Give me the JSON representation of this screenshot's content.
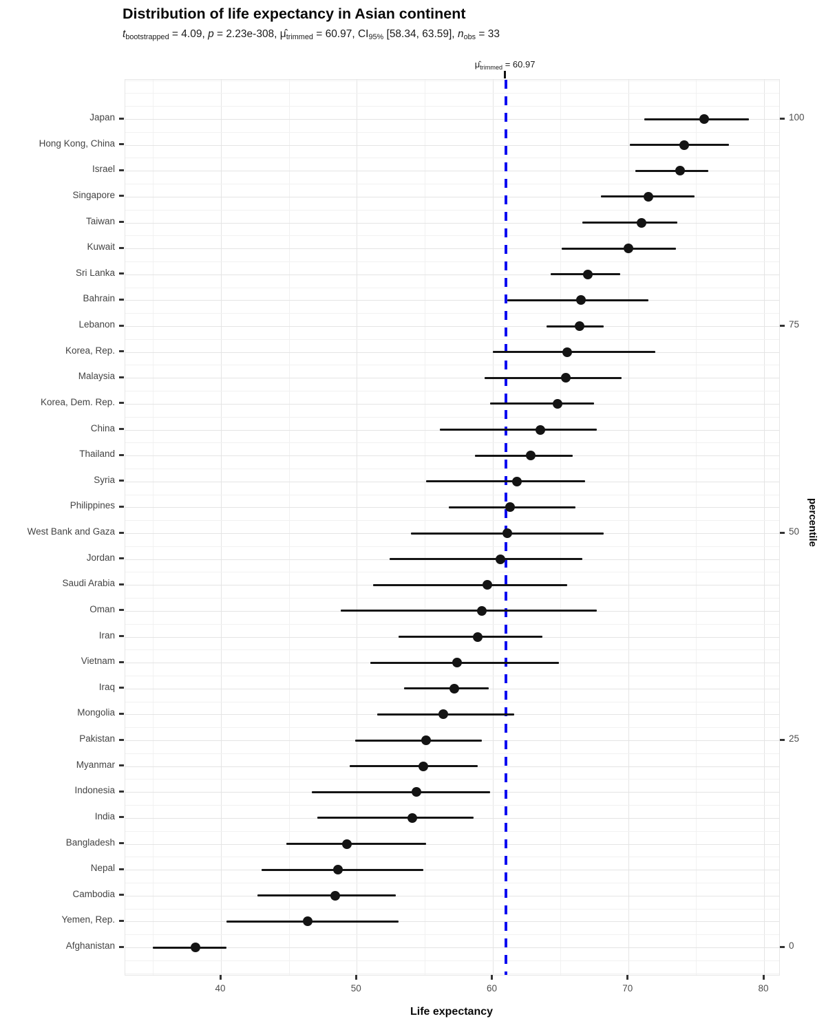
{
  "title": "Distribution of life expectancy in Asian continent",
  "subtitle_segments": [
    {
      "t": "t",
      "s": "i"
    },
    {
      "t": "bootstrapped",
      "s": "sub"
    },
    {
      "t": " = 4.09, "
    },
    {
      "t": "p",
      "s": "i"
    },
    {
      "t": " = 2.23e-308, "
    },
    {
      "t": "μ̂"
    },
    {
      "t": "trimmed",
      "s": "sub"
    },
    {
      "t": " = 60.97, CI"
    },
    {
      "t": "95%",
      "s": "sub"
    },
    {
      "t": " [58.34, 63.59], "
    },
    {
      "t": "n",
      "s": "i"
    },
    {
      "t": "obs",
      "s": "sub"
    },
    {
      "t": " = 33"
    }
  ],
  "colors": {
    "vline_blue": "#0D0DF0",
    "point_black": "#141414",
    "grid_major": "#E4E4E4",
    "grid_minor": "#F1F1F1",
    "axis_text": "#4D4D4D",
    "country_text": "#434343",
    "tick_mark": "#333333"
  },
  "chart_data": {
    "type": "scatter",
    "title": "Distribution of life expectancy in Asian continent",
    "subtitle_plain": "t bootstrapped = 4.09, p = 2.23e-308, mu-hat trimmed = 60.97, CI 95% [58.34, 63.59], n obs = 33",
    "xlabel": "Life expectancy",
    "xlim": [
      33.0,
      81.2
    ],
    "x_ticks": [
      40,
      50,
      60,
      70,
      80
    ],
    "x_tick_labels": [
      "40",
      "50",
      "60",
      "70",
      "80"
    ],
    "x_minor_ticks": [
      35,
      45,
      55,
      65,
      75
    ],
    "grid": true,
    "vline": {
      "x": 60.97,
      "style": "dashed",
      "label_segments": [
        {
          "t": "μ̂"
        },
        {
          "t": "trimmed",
          "s": "sub"
        },
        {
          "t": " = 60.97"
        }
      ]
    },
    "right_axis": {
      "title": "percentile",
      "ticks": [
        {
          "label": "100",
          "country": "Japan"
        },
        {
          "label": "75",
          "country": "Lebanon"
        },
        {
          "label": "50",
          "country": "West Bank and Gaza"
        },
        {
          "label": "25",
          "country": "Pakistan"
        },
        {
          "label": "0",
          "country": "Afghanistan"
        }
      ]
    },
    "points": [
      {
        "country": "Japan",
        "mean": 75.6,
        "ci": [
          71.2,
          78.9
        ],
        "percentile": 100
      },
      {
        "country": "Hong Kong, China",
        "mean": 74.1,
        "ci": [
          70.1,
          77.4
        ],
        "percentile": 96.9
      },
      {
        "country": "Israel",
        "mean": 73.8,
        "ci": [
          70.5,
          75.9
        ],
        "percentile": 93.8
      },
      {
        "country": "Singapore",
        "mean": 71.5,
        "ci": [
          68.0,
          74.9
        ],
        "percentile": 90.6
      },
      {
        "country": "Taiwan",
        "mean": 71.0,
        "ci": [
          66.6,
          73.6
        ],
        "percentile": 87.5
      },
      {
        "country": "Kuwait",
        "mean": 70.0,
        "ci": [
          65.1,
          73.5
        ],
        "percentile": 84.4
      },
      {
        "country": "Sri Lanka",
        "mean": 67.0,
        "ci": [
          64.3,
          69.4
        ],
        "percentile": 81.3
      },
      {
        "country": "Bahrain",
        "mean": 66.5,
        "ci": [
          61.1,
          71.5
        ],
        "percentile": 78.1
      },
      {
        "country": "Lebanon",
        "mean": 66.4,
        "ci": [
          64.0,
          68.2
        ],
        "percentile": 75
      },
      {
        "country": "Korea, Rep.",
        "mean": 65.5,
        "ci": [
          60.0,
          72.0
        ],
        "percentile": 71.9
      },
      {
        "country": "Malaysia",
        "mean": 65.4,
        "ci": [
          59.4,
          69.5
        ],
        "percentile": 68.8
      },
      {
        "country": "Korea, Dem. Rep.",
        "mean": 64.8,
        "ci": [
          59.8,
          67.5
        ],
        "percentile": 65.6
      },
      {
        "country": "China",
        "mean": 63.5,
        "ci": [
          56.1,
          67.7
        ],
        "percentile": 62.5
      },
      {
        "country": "Thailand",
        "mean": 62.8,
        "ci": [
          58.7,
          65.9
        ],
        "percentile": 59.4
      },
      {
        "country": "Syria",
        "mean": 61.8,
        "ci": [
          55.1,
          66.8
        ],
        "percentile": 56.3
      },
      {
        "country": "Philippines",
        "mean": 61.3,
        "ci": [
          56.8,
          66.1
        ],
        "percentile": 53.1
      },
      {
        "country": "West Bank and Gaza",
        "mean": 61.1,
        "ci": [
          54.0,
          68.2
        ],
        "percentile": 50
      },
      {
        "country": "Jordan",
        "mean": 60.6,
        "ci": [
          52.4,
          66.6
        ],
        "percentile": 46.9
      },
      {
        "country": "Saudi Arabia",
        "mean": 59.6,
        "ci": [
          51.2,
          65.5
        ],
        "percentile": 43.8
      },
      {
        "country": "Oman",
        "mean": 59.2,
        "ci": [
          48.8,
          67.7
        ],
        "percentile": 40.6
      },
      {
        "country": "Iran",
        "mean": 58.9,
        "ci": [
          53.1,
          63.7
        ],
        "percentile": 37.5
      },
      {
        "country": "Vietnam",
        "mean": 57.4,
        "ci": [
          51.0,
          64.9
        ],
        "percentile": 34.4
      },
      {
        "country": "Iraq",
        "mean": 57.2,
        "ci": [
          53.5,
          59.7
        ],
        "percentile": 31.3
      },
      {
        "country": "Mongolia",
        "mean": 56.4,
        "ci": [
          51.5,
          61.6
        ],
        "percentile": 28.1
      },
      {
        "country": "Pakistan",
        "mean": 55.1,
        "ci": [
          49.9,
          59.2
        ],
        "percentile": 25
      },
      {
        "country": "Myanmar",
        "mean": 54.9,
        "ci": [
          49.5,
          58.9
        ],
        "percentile": 21.9
      },
      {
        "country": "Indonesia",
        "mean": 54.4,
        "ci": [
          46.7,
          59.8
        ],
        "percentile": 18.8
      },
      {
        "country": "India",
        "mean": 54.1,
        "ci": [
          47.1,
          58.6
        ],
        "percentile": 15.6
      },
      {
        "country": "Bangladesh",
        "mean": 49.3,
        "ci": [
          44.8,
          55.1
        ],
        "percentile": 12.5
      },
      {
        "country": "Nepal",
        "mean": 48.6,
        "ci": [
          43.0,
          54.9
        ],
        "percentile": 9.4
      },
      {
        "country": "Cambodia",
        "mean": 48.4,
        "ci": [
          42.7,
          52.9
        ],
        "percentile": 6.3
      },
      {
        "country": "Yemen, Rep.",
        "mean": 46.4,
        "ci": [
          40.4,
          53.1
        ],
        "percentile": 3.1
      },
      {
        "country": "Afghanistan",
        "mean": 38.1,
        "ci": [
          35.0,
          40.4
        ],
        "percentile": 0
      }
    ]
  }
}
